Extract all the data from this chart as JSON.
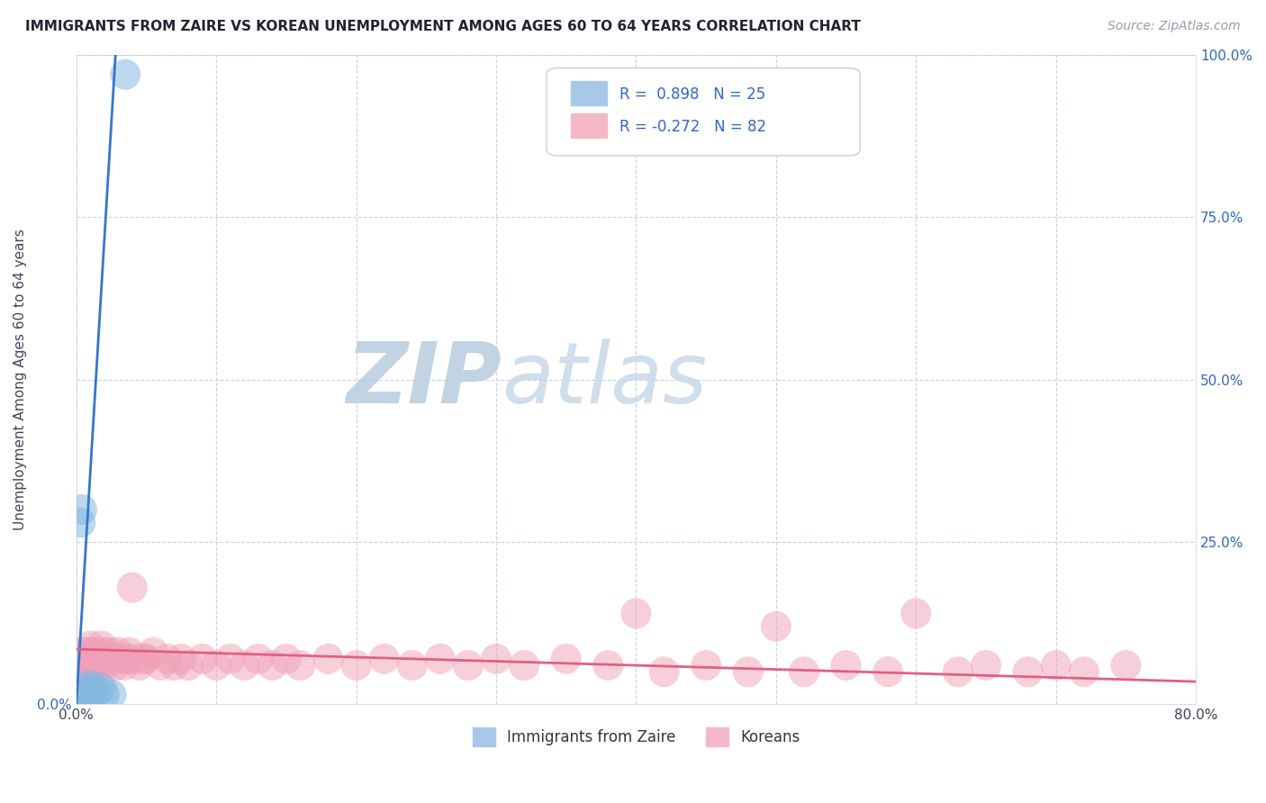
{
  "title": "IMMIGRANTS FROM ZAIRE VS KOREAN UNEMPLOYMENT AMONG AGES 60 TO 64 YEARS CORRELATION CHART",
  "source": "Source: ZipAtlas.com",
  "ylabel_label": "Unemployment Among Ages 60 to 64 years",
  "legend_labels": [
    "Immigrants from Zaire",
    "Koreans"
  ],
  "blue_color": "#85b8e0",
  "pink_color": "#f0a0b8",
  "blue_line_color": "#3377cc",
  "pink_line_color": "#e06080",
  "watermark_zip": "ZIP",
  "watermark_atlas": "atlas",
  "watermark_color": "#ccd8e8",
  "blue_scatter_x": [
    0.0008,
    0.001,
    0.0012,
    0.0015,
    0.0018,
    0.002,
    0.002,
    0.0025,
    0.003,
    0.003,
    0.004,
    0.004,
    0.005,
    0.005,
    0.006,
    0.007,
    0.008,
    0.009,
    0.01,
    0.012,
    0.015,
    0.018,
    0.02,
    0.025,
    0.035
  ],
  "blue_scatter_y": [
    0.005,
    0.003,
    0.004,
    0.006,
    0.007,
    0.008,
    0.005,
    0.009,
    0.01,
    0.28,
    0.3,
    0.005,
    0.008,
    0.01,
    0.012,
    0.015,
    0.02,
    0.025,
    0.03,
    0.015,
    0.02,
    0.025,
    0.015,
    0.015,
    0.97
  ],
  "blue_line_x0": 0.0,
  "blue_line_y0": 0.0,
  "blue_line_x1": 0.028,
  "blue_line_y1": 1.0,
  "pink_line_x0": 0.0,
  "pink_line_y0": 0.085,
  "pink_line_x1": 0.8,
  "pink_line_y1": 0.035,
  "pink_scatter_x": [
    0.001,
    0.002,
    0.002,
    0.003,
    0.003,
    0.004,
    0.004,
    0.005,
    0.005,
    0.006,
    0.006,
    0.007,
    0.007,
    0.008,
    0.008,
    0.009,
    0.01,
    0.01,
    0.011,
    0.012,
    0.013,
    0.014,
    0.015,
    0.016,
    0.017,
    0.018,
    0.019,
    0.02,
    0.02,
    0.022,
    0.024,
    0.026,
    0.028,
    0.03,
    0.032,
    0.034,
    0.036,
    0.038,
    0.04,
    0.042,
    0.045,
    0.048,
    0.05,
    0.055,
    0.06,
    0.065,
    0.07,
    0.075,
    0.08,
    0.09,
    0.1,
    0.11,
    0.12,
    0.13,
    0.14,
    0.15,
    0.16,
    0.18,
    0.2,
    0.22,
    0.24,
    0.26,
    0.28,
    0.3,
    0.32,
    0.35,
    0.38,
    0.4,
    0.42,
    0.45,
    0.48,
    0.5,
    0.52,
    0.55,
    0.58,
    0.6,
    0.63,
    0.65,
    0.68,
    0.7,
    0.72,
    0.75
  ],
  "pink_scatter_y": [
    0.05,
    0.06,
    0.04,
    0.07,
    0.05,
    0.06,
    0.04,
    0.07,
    0.05,
    0.08,
    0.06,
    0.07,
    0.05,
    0.08,
    0.06,
    0.07,
    0.09,
    0.06,
    0.07,
    0.08,
    0.07,
    0.06,
    0.08,
    0.07,
    0.06,
    0.09,
    0.07,
    0.08,
    0.06,
    0.07,
    0.08,
    0.07,
    0.06,
    0.08,
    0.07,
    0.06,
    0.07,
    0.08,
    0.18,
    0.07,
    0.06,
    0.07,
    0.07,
    0.08,
    0.06,
    0.07,
    0.06,
    0.07,
    0.06,
    0.07,
    0.06,
    0.07,
    0.06,
    0.07,
    0.06,
    0.07,
    0.06,
    0.07,
    0.06,
    0.07,
    0.06,
    0.07,
    0.06,
    0.07,
    0.06,
    0.07,
    0.06,
    0.14,
    0.05,
    0.06,
    0.05,
    0.12,
    0.05,
    0.06,
    0.05,
    0.14,
    0.05,
    0.06,
    0.05,
    0.06,
    0.05,
    0.06
  ],
  "xlim": [
    0.0,
    0.8
  ],
  "ylim": [
    0.0,
    1.0
  ],
  "xticks": [
    0.0,
    0.1,
    0.2,
    0.3,
    0.4,
    0.5,
    0.6,
    0.7,
    0.8
  ],
  "yticks": [
    0.0,
    0.25,
    0.5,
    0.75,
    1.0
  ],
  "xtick_labels_show": [
    "0.0%",
    "",
    "",
    "",
    "",
    "",
    "",
    "",
    "80.0%"
  ],
  "ytick_labels_left": [
    "0.0%",
    "",
    "",
    "",
    ""
  ],
  "ytick_labels_right": [
    "",
    "25.0%",
    "50.0%",
    "75.0%",
    "100.0%"
  ],
  "grid_color": "#c8d4e4",
  "bg_color": "#ffffff",
  "title_color": "#222233",
  "source_color": "#999aaa",
  "ylabel_color": "#444455",
  "tick_color_blue": "#3366bb",
  "tick_color_dark": "#444455"
}
